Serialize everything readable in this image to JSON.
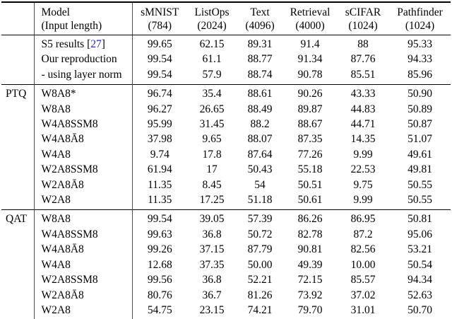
{
  "table": {
    "header": {
      "model": {
        "line1": "Model",
        "line2": "(Input length)"
      },
      "columns": [
        {
          "name": "sMNIST",
          "length": "(784)"
        },
        {
          "name": "ListOps",
          "length": "(2024)"
        },
        {
          "name": "Text",
          "length": "(4096)"
        },
        {
          "name": "Retrieval",
          "length": "(4000)"
        },
        {
          "name": "sCIFAR",
          "length": "(1024)"
        },
        {
          "name": "Pathfinder",
          "length": "(1024)"
        }
      ]
    },
    "sections": [
      {
        "label": "",
        "name": "baseline",
        "rows": [
          {
            "model_prefix": "S5 results [",
            "cite": "27",
            "model_suffix": "]",
            "values": [
              "99.65",
              "62.15",
              "89.31",
              "91.4",
              "88",
              "95.33"
            ]
          },
          {
            "model": "Our reproduction",
            "values": [
              "99.54",
              "61.1",
              "88.77",
              "91.34",
              "87.76",
              "94.33"
            ]
          },
          {
            "model": "- using layer norm",
            "values": [
              "99.54",
              "57.9",
              "88.74",
              "90.78",
              "85.51",
              "85.96"
            ]
          }
        ]
      },
      {
        "label": "PTQ",
        "name": "ptq",
        "rows": [
          {
            "model": "W8A8*",
            "values": [
              "96.74",
              "35.4",
              "88.61",
              "90.26",
              "43.33",
              "50.90"
            ]
          },
          {
            "model": "W8A8",
            "values": [
              "96.27",
              "26.65",
              "88.49",
              "89.87",
              "44.83",
              "50.89"
            ]
          },
          {
            "model": "W4A8SSM8",
            "values": [
              "95.99",
              "31.45",
              "88.2",
              "88.67",
              "44.71",
              "50.87"
            ]
          },
          {
            "model": "W4A8Ā8",
            "values": [
              "37.98",
              "9.65",
              "88.07",
              "87.35",
              "14.35",
              "51.07"
            ]
          },
          {
            "model": "W4A8",
            "values": [
              "9.74",
              "17.8",
              "87.64",
              "77.26",
              "9.99",
              "49.61"
            ]
          },
          {
            "model": "W2A8SSM8",
            "values": [
              "61.94",
              "17",
              "50.43",
              "55.18",
              "22.53",
              "49.81"
            ]
          },
          {
            "model": "W2A8Ā8",
            "values": [
              "11.35",
              "8.45",
              "54",
              "50.51",
              "9.75",
              "50.55"
            ]
          },
          {
            "model": "W2A8",
            "values": [
              "11.35",
              "17.25",
              "51.18",
              "50.61",
              "9.99",
              "50.55"
            ]
          }
        ]
      },
      {
        "label": "QAT",
        "name": "qat",
        "rows": [
          {
            "model": "W8A8",
            "values": [
              "99.54",
              "39.05",
              "57.39",
              "86.26",
              "86.95",
              "50.81"
            ]
          },
          {
            "model": "W4A8SSM8",
            "values": [
              "99.63",
              "36.8",
              "50.72",
              "82.78",
              "87.2",
              "95.06"
            ]
          },
          {
            "model": "W4A8Ā8",
            "values": [
              "99.26",
              "37.15",
              "87.79",
              "90.81",
              "82.56",
              "53.21"
            ]
          },
          {
            "model": "W4A8",
            "values": [
              "12.68",
              "37.35",
              "50.00",
              "49.39",
              "10.00",
              "50.54"
            ]
          },
          {
            "model": "W2A8SSM8",
            "values": [
              "99.56",
              "36.8",
              "52.21",
              "72.15",
              "85.57",
              "94.34"
            ]
          },
          {
            "model": "W2A8Ā8",
            "values": [
              "80.76",
              "36.7",
              "81.26",
              "73.92",
              "37.02",
              "52.63"
            ]
          },
          {
            "model": "W2A8",
            "values": [
              "54.75",
              "23.15",
              "74.21",
              "79.70",
              "31.01",
              "50.70"
            ]
          }
        ]
      }
    ],
    "colors": {
      "citation": "#2828c8",
      "text": "#000000",
      "rule": "#000000",
      "vertical_line": "#4d4d4d"
    }
  }
}
